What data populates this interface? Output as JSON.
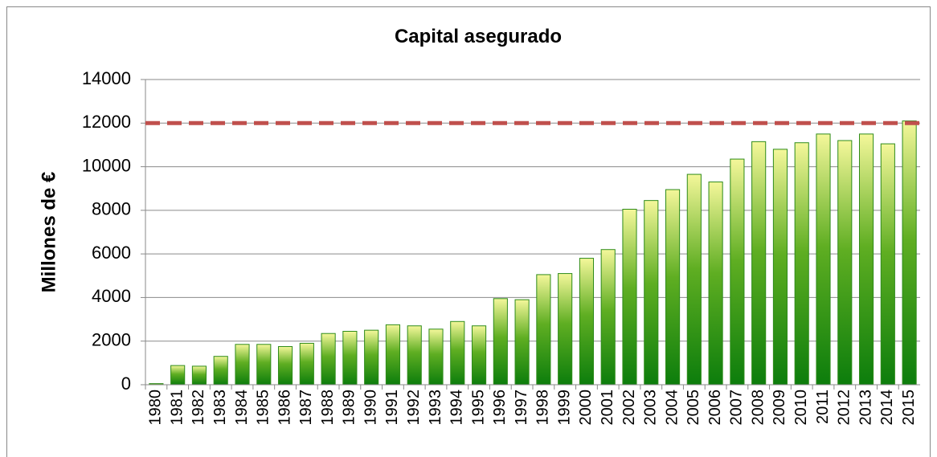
{
  "chart_data": {
    "type": "bar",
    "title": "Capital asegurado",
    "y_label": "Millones de €",
    "categories": [
      "1980",
      "1981",
      "1982",
      "1983",
      "1984",
      "1985",
      "1986",
      "1987",
      "1988",
      "1989",
      "1990",
      "1991",
      "1992",
      "1993",
      "1994",
      "1995",
      "1996",
      "1997",
      "1998",
      "1999",
      "2000",
      "2001",
      "2002",
      "2003",
      "2004",
      "2005",
      "2006",
      "2007",
      "2008",
      "2009",
      "2010",
      "2011",
      "2012",
      "2013",
      "2014",
      "2015"
    ],
    "values": [
      50,
      880,
      850,
      1300,
      1850,
      1850,
      1750,
      1900,
      2350,
      2450,
      2500,
      2750,
      2700,
      2550,
      2900,
      2700,
      3950,
      3900,
      5050,
      5100,
      5800,
      6200,
      8050,
      8450,
      8950,
      9650,
      9300,
      10350,
      11150,
      10800,
      11100,
      11500,
      11200,
      11500,
      11050,
      12100
    ],
    "color": "#2e8b1a",
    "ylim": [
      0,
      14000
    ],
    "yticks": [
      0,
      2000,
      4000,
      6000,
      8000,
      10000,
      12000,
      14000
    ],
    "grid": true,
    "reference_line": {
      "value": 12000,
      "color": "#c0504d"
    }
  }
}
